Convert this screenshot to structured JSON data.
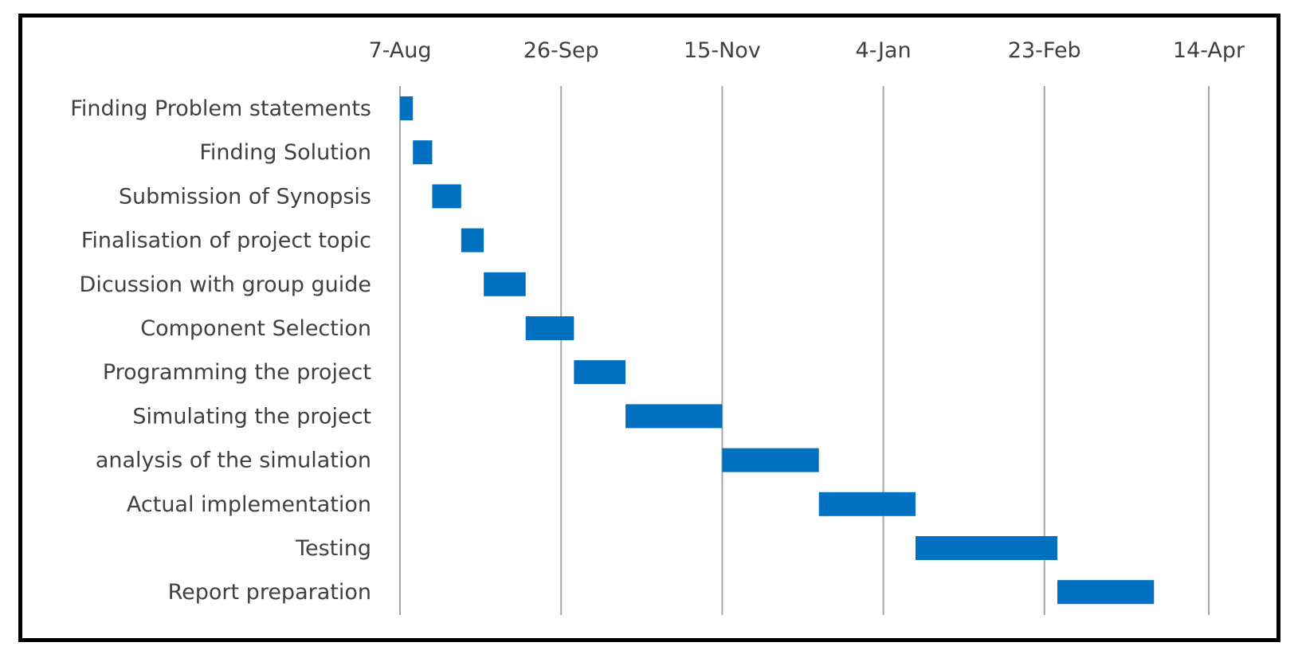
{
  "chart_data": {
    "type": "bar",
    "subtype": "gantt",
    "title": "",
    "xlabel": "",
    "ylabel": "",
    "x_axis_position": "top",
    "xlim": [
      "2019-08-07",
      "2020-04-14"
    ],
    "x_ticks": [
      "7-Aug",
      "26-Sep",
      "15-Nov",
      "4-Jan",
      "23-Feb",
      "14-Apr"
    ],
    "x_tick_dates": [
      "2019-08-07",
      "2019-09-26",
      "2019-11-15",
      "2020-01-04",
      "2020-02-23",
      "2020-04-14"
    ],
    "grid": "vertical",
    "legend": "none",
    "bar_color": "#0070c0",
    "tasks": [
      {
        "name": "Finding Problem statements",
        "start": "2019-08-07",
        "end": "2019-08-11"
      },
      {
        "name": "Finding Solution",
        "start": "2019-08-11",
        "end": "2019-08-17"
      },
      {
        "name": "Submission of Synopsis",
        "start": "2019-08-17",
        "end": "2019-08-26"
      },
      {
        "name": "Finalisation of project topic",
        "start": "2019-08-26",
        "end": "2019-09-02"
      },
      {
        "name": "Dicussion with group guide",
        "start": "2019-09-02",
        "end": "2019-09-15"
      },
      {
        "name": "Component Selection",
        "start": "2019-09-15",
        "end": "2019-09-30"
      },
      {
        "name": "Programming the project",
        "start": "2019-09-30",
        "end": "2019-10-16"
      },
      {
        "name": "Simulating the project",
        "start": "2019-10-16",
        "end": "2019-11-15"
      },
      {
        "name": "analysis of the simulation",
        "start": "2019-11-15",
        "end": "2019-12-15"
      },
      {
        "name": "Actual implementation",
        "start": "2019-12-15",
        "end": "2020-01-14"
      },
      {
        "name": "Testing",
        "start": "2020-01-14",
        "end": "2020-02-27"
      },
      {
        "name": "Report preparation",
        "start": "2020-02-27",
        "end": "2020-03-28"
      }
    ]
  }
}
